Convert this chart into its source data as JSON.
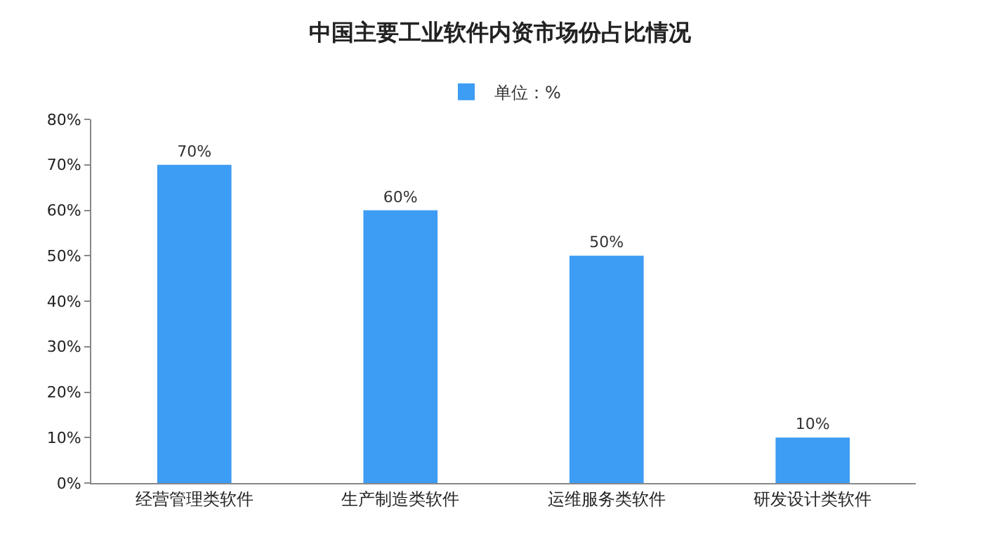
{
  "chart_data": {
    "type": "bar",
    "title": "中国主要工业软件内资市场份占比情况",
    "categories": [
      "经营管理类软件",
      "生产制造类软件",
      "运维服务类软件",
      "研发设计类软件"
    ],
    "series": [
      {
        "name": "单位：%",
        "color": "#3d9cf3",
        "values": [
          70,
          60,
          50,
          10
        ],
        "value_labels": [
          "70%",
          "60%",
          "50%",
          "10%"
        ]
      }
    ],
    "ylim": [
      0,
      80
    ],
    "yticks": [
      {
        "value": 0,
        "label": "0%"
      },
      {
        "value": 10,
        "label": "10%"
      },
      {
        "value": 20,
        "label": "20%"
      },
      {
        "value": 30,
        "label": "30%"
      },
      {
        "value": 40,
        "label": "40%"
      },
      {
        "value": 50,
        "label": "50%"
      },
      {
        "value": 60,
        "label": "60%"
      },
      {
        "value": 70,
        "label": "70%"
      },
      {
        "value": 80,
        "label": "80%"
      }
    ],
    "grid": false,
    "legend": "top"
  }
}
